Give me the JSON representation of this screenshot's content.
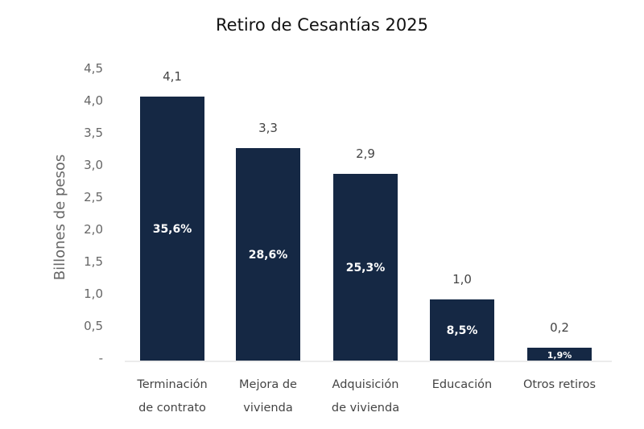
{
  "chart_data": {
    "type": "bar",
    "title": "Retiro de Cesantías 2025",
    "xlabel": "",
    "ylabel": "Billones de pesos",
    "ylim": [
      0,
      4.5
    ],
    "y_ticks": [
      "-",
      "0,5",
      "1,0",
      "1,5",
      "2,0",
      "2,5",
      "3,0",
      "3,5",
      "4,0",
      "4,5"
    ],
    "categories": [
      [
        "Terminación",
        "de contrato"
      ],
      [
        "Mejora de",
        "vivienda"
      ],
      [
        "Adquisición",
        "de vivienda"
      ],
      [
        "Educación"
      ],
      [
        "Otros retiros"
      ]
    ],
    "values": [
      4.1,
      3.3,
      2.9,
      0.95,
      0.2
    ],
    "value_labels": [
      "4,1",
      "3,3",
      "2,9",
      "1,0",
      "0,2"
    ],
    "share_labels": [
      "35,6%",
      "28,6%",
      "25,3%",
      "8,5%",
      "1,9%"
    ],
    "grid": false,
    "legend": "none",
    "bar_color": "#152844"
  }
}
